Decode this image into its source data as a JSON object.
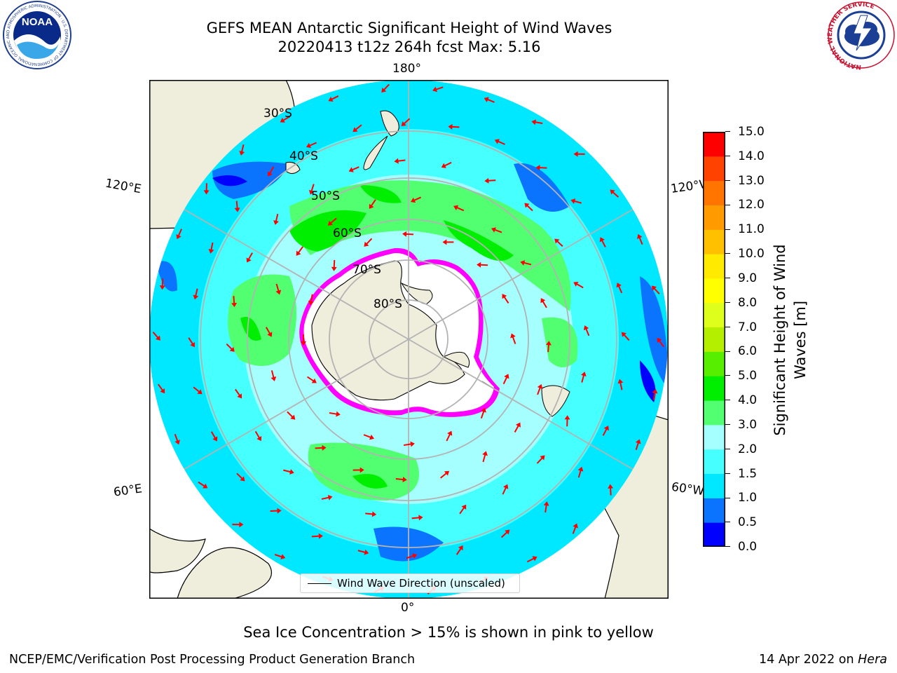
{
  "header": {
    "title_line1": "GEFS MEAN Antarctic Significant Height of Wind Waves",
    "title_line2": "20220413 t12z 264h fcst   Max: 5.16"
  },
  "logos": {
    "left": "noaa-logo",
    "left_text": "NOAA",
    "left_ring_text": "NATIONAL OCEANIC AND ATMOSPHERIC ADMINISTRATION · U.S. DEPARTMENT OF COMMERCE",
    "right": "national-weather-service-logo",
    "right_ring_text": "NATIONAL WEATHER SERVICE"
  },
  "map": {
    "projection": "south-polar-stereographic",
    "longitude_labels": {
      "top": "180°",
      "bottom": "0°",
      "upper_left": "120°E",
      "upper_right": "120°W",
      "lower_left": "60°E",
      "lower_right": "60°W"
    },
    "latitude_labels": [
      "30°S",
      "40°S",
      "50°S",
      "60°S",
      "70°S",
      "80°S"
    ],
    "legend_label": "Wind Wave Direction (unscaled)",
    "arrow_color": "#ff0000",
    "land_color": "#efeedc",
    "ice_edge_colors": [
      "#ff00ff",
      "#ffaa00",
      "#ffff00"
    ]
  },
  "colorbar": {
    "title_line1": "Significant Height of Wind",
    "title_line2": "Waves [m]",
    "ticks": [
      "0.0",
      "0.5",
      "1.0",
      "1.5",
      "2.0",
      "3.0",
      "4.0",
      "5.0",
      "6.0",
      "7.0",
      "8.0",
      "9.0",
      "10.0",
      "11.0",
      "12.0",
      "13.0",
      "14.0",
      "15.0"
    ],
    "colors": [
      "#0000ff",
      "#0a74ff",
      "#00e8ff",
      "#46ffff",
      "#a6ffff",
      "#52ff70",
      "#00ee00",
      "#58ee00",
      "#b5ef00",
      "#ddff1b",
      "#ffff00",
      "#ffea00",
      "#ffc000",
      "#ff9a00",
      "#ff7500",
      "#ff4200",
      "#ff0000"
    ]
  },
  "caption": "Sea Ice Concentration > 15% is shown in pink to yellow",
  "footer": {
    "left": "NCEP/EMC/Verification Post Processing Product Generation Branch",
    "date": "14 Apr 2022 on ",
    "machine": "Hera"
  }
}
